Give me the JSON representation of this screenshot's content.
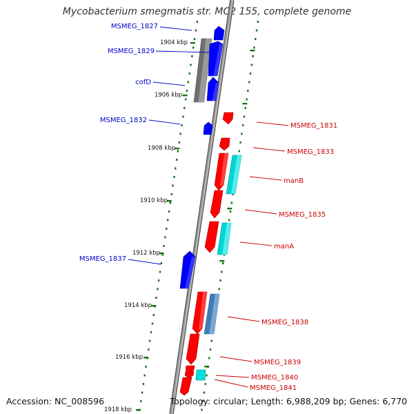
{
  "title": "Mycobacterium smegmatis str. MC2 155, complete genome",
  "accession": "Accession: NC_008596",
  "topology": "Topology: circular; Length: 6,988,209 bp; Genes: 6,770",
  "colors": {
    "forward_gene": "#0000ff",
    "reverse_gene": "#ff0000",
    "grey_feature": "#707070",
    "cyan_feature": "#00d0d0",
    "steel_feature": "#4a7fb0",
    "backbone": "#808080",
    "dots": "#117711"
  },
  "ticks": [
    {
      "label": "1904 kbp"
    },
    {
      "label": "1906 kbp"
    },
    {
      "label": "1908 kbp"
    },
    {
      "label": "1910 kbp"
    },
    {
      "label": "1912 kbp"
    },
    {
      "label": "1914 kbp"
    },
    {
      "label": "1916 kbp"
    },
    {
      "label": "1918 kbp"
    }
  ],
  "left_labels": [
    {
      "text": "MSMEG_1827"
    },
    {
      "text": "MSMEG_1829"
    },
    {
      "text": "cofD"
    },
    {
      "text": "MSMEG_1832"
    },
    {
      "text": "MSMEG_1837"
    }
  ],
  "right_labels": [
    {
      "text": "MSMEG_1831"
    },
    {
      "text": "MSMEG_1833"
    },
    {
      "text": "manB"
    },
    {
      "text": "MSMEG_1835"
    },
    {
      "text": "manA"
    },
    {
      "text": "MSMEG_1838"
    },
    {
      "text": "MSMEG_1839"
    },
    {
      "text": "MSMEG_1840"
    },
    {
      "text": "MSMEG_1841"
    }
  ]
}
